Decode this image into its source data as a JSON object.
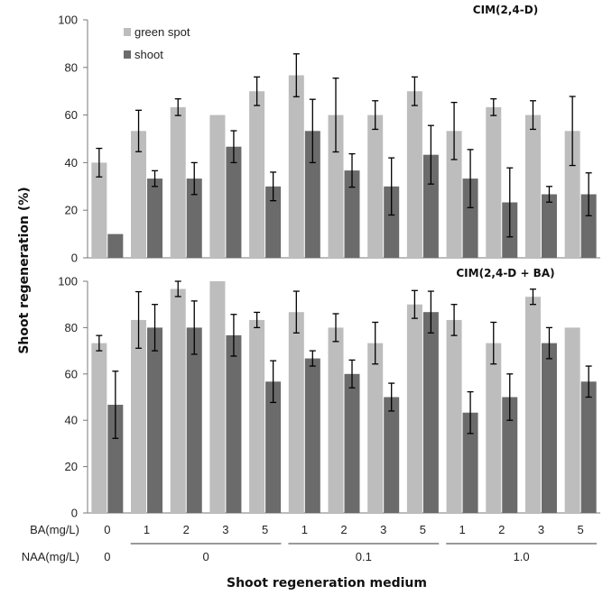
{
  "chart_data": [
    {
      "type": "bar",
      "title": "CIM(2,4-D)",
      "ylabel": "Shoot regeneration (%)",
      "ylim": [
        0,
        100
      ],
      "yticks": [
        0,
        20,
        40,
        60,
        80,
        100
      ],
      "legend": "top-left",
      "grid": false,
      "series": [
        {
          "name": "green spot",
          "color": "#bdbdbd",
          "values": [
            40,
            53.3,
            63.3,
            60,
            70,
            76.7,
            60,
            60,
            70,
            53.3,
            63.3,
            60,
            53.3
          ],
          "errors": [
            6,
            8.7,
            3.5,
            0,
            6,
            9,
            15.5,
            6,
            6,
            12,
            3.5,
            6,
            14.5
          ]
        },
        {
          "name": "shoot",
          "color": "#6b6b6b",
          "values": [
            10,
            33.3,
            33.3,
            46.7,
            30,
            53.3,
            36.7,
            30,
            43.3,
            33.3,
            23.3,
            26.7,
            26.7
          ],
          "errors": [
            0,
            3.3,
            6.7,
            6.7,
            6,
            13.3,
            7,
            12,
            12.3,
            12.2,
            14.5,
            3.3,
            9
          ]
        }
      ]
    },
    {
      "type": "bar",
      "title": "CIM(2,4-D + BA)",
      "ylabel": "Shoot regeneration (%)",
      "ylim": [
        0,
        100
      ],
      "yticks": [
        0,
        20,
        40,
        60,
        80,
        100
      ],
      "grid": false,
      "series": [
        {
          "name": "green spot",
          "color": "#bdbdbd",
          "values": [
            73.3,
            83.3,
            96.7,
            100,
            83.3,
            86.7,
            80,
            73.3,
            90,
            83.3,
            73.3,
            93.3,
            80
          ],
          "errors": [
            3.3,
            12.2,
            3.3,
            0,
            3.3,
            9,
            6,
            9,
            6,
            6.7,
            9,
            3.3,
            0
          ]
        },
        {
          "name": "shoot",
          "color": "#6b6b6b",
          "values": [
            46.7,
            80,
            80,
            76.7,
            56.7,
            66.7,
            60,
            50,
            86.7,
            43.3,
            50,
            73.3,
            56.7
          ],
          "errors": [
            14.5,
            10,
            11.5,
            9,
            9,
            3.3,
            6,
            6,
            9,
            9,
            10,
            6.7,
            6.7
          ]
        }
      ]
    }
  ],
  "x_axis": {
    "ba_label": "BA(mg/L)",
    "ba_values": [
      "0",
      "1",
      "2",
      "3",
      "5",
      "1",
      "2",
      "3",
      "5",
      "1",
      "2",
      "3",
      "5"
    ],
    "naa_label": "NAA(mg/L)",
    "naa_groups": [
      {
        "label": "0",
        "span": [
          0,
          0
        ],
        "underline": false
      },
      {
        "label": "0",
        "span": [
          1,
          4
        ],
        "underline": true
      },
      {
        "label": "0.1",
        "span": [
          5,
          8
        ],
        "underline": true
      },
      {
        "label": "1.0",
        "span": [
          9,
          12
        ],
        "underline": true
      }
    ],
    "title": "Shoot regeneration medium"
  }
}
